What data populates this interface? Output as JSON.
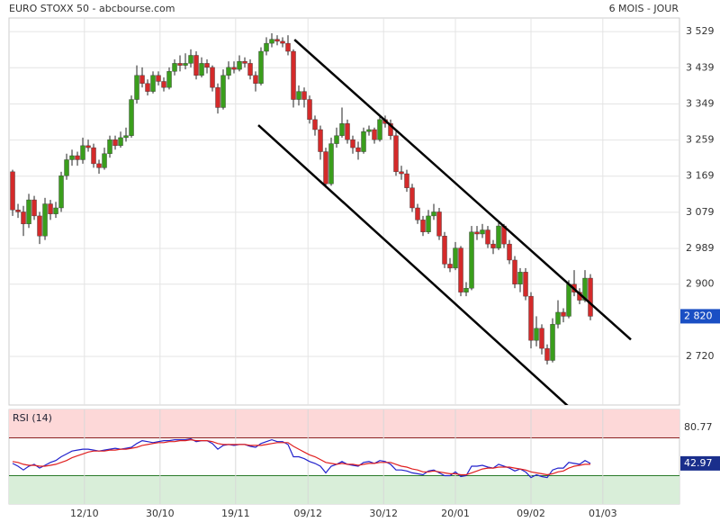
{
  "header": {
    "title": "EURO STOXX 50 - abcbourse.com",
    "period": "6 MOIS - JOUR"
  },
  "chart_data": [
    {
      "type": "candlestick",
      "grid": true,
      "up_color": "#3a9e1c",
      "down_color": "#d42a2a",
      "xlim": [
        -0.67,
        123.5
      ],
      "xticks": [
        {
          "value": 13.3,
          "label": "12/10"
        },
        {
          "value": 27.3,
          "label": "30/10"
        },
        {
          "value": 41.3,
          "label": "19/11"
        },
        {
          "value": 54.7,
          "label": "09/12"
        },
        {
          "value": 68.7,
          "label": "30/12"
        },
        {
          "value": 82,
          "label": "20/01"
        },
        {
          "value": 96,
          "label": "09/02"
        },
        {
          "value": 109.3,
          "label": "01/03"
        }
      ],
      "ylim": [
        2599,
        3563
      ],
      "yticks": [
        {
          "value": 3529,
          "label": "3 529"
        },
        {
          "value": 3439,
          "label": "3 439"
        },
        {
          "value": 3349,
          "label": "3 349"
        },
        {
          "value": 3259,
          "label": "3 259"
        },
        {
          "value": 3169,
          "label": "3 169"
        },
        {
          "value": 3079,
          "label": "3 079"
        },
        {
          "value": 2989,
          "label": "2 989"
        },
        {
          "value": 2900,
          "label": "2 900"
        },
        {
          "value": 2720,
          "label": "2 720"
        }
      ],
      "last_label": {
        "value": 2820,
        "label": "2 820",
        "color": "#1a4fc4"
      },
      "open": [
        3180,
        3085,
        3080,
        3050,
        3110,
        3070,
        3020,
        3100,
        3075,
        3090,
        3170,
        3210,
        3220,
        3210,
        3245,
        3240,
        3200,
        3190,
        3225,
        3260,
        3245,
        3265,
        3270,
        3360,
        3420,
        3400,
        3380,
        3420,
        3405,
        3390,
        3430,
        3450,
        3445,
        3450,
        3470,
        3420,
        3450,
        3440,
        3390,
        3340,
        3420,
        3440,
        3435,
        3455,
        3450,
        3420,
        3400,
        3480,
        3500,
        3510,
        3505,
        3500,
        3480,
        3360,
        3380,
        3360,
        3310,
        3285,
        3230,
        3150,
        3250,
        3270,
        3300,
        3260,
        3240,
        3230,
        3280,
        3285,
        3260,
        3310,
        3300,
        3270,
        3180,
        3175,
        3140,
        3090,
        3060,
        3030,
        3070,
        3080,
        3020,
        2950,
        2940,
        2990,
        2880,
        2890,
        3030,
        3025,
        3035,
        3000,
        2990,
        3045,
        3000,
        2960,
        2900,
        2930,
        2870,
        2760,
        2790,
        2740,
        2710,
        2800,
        2830,
        2820,
        2900,
        2880,
        2860,
        2915
      ],
      "high": [
        3185,
        3100,
        3095,
        3125,
        3120,
        3080,
        3115,
        3110,
        3105,
        3180,
        3225,
        3235,
        3230,
        3265,
        3260,
        3250,
        3210,
        3240,
        3270,
        3270,
        3280,
        3290,
        3370,
        3445,
        3440,
        3410,
        3430,
        3430,
        3415,
        3440,
        3460,
        3470,
        3475,
        3485,
        3480,
        3465,
        3460,
        3445,
        3400,
        3435,
        3455,
        3455,
        3470,
        3465,
        3460,
        3430,
        3490,
        3515,
        3525,
        3520,
        3515,
        3520,
        3485,
        3395,
        3390,
        3370,
        3320,
        3295,
        3240,
        3265,
        3290,
        3340,
        3310,
        3270,
        3255,
        3290,
        3295,
        3290,
        3320,
        3320,
        3310,
        3280,
        3195,
        3185,
        3150,
        3100,
        3070,
        3085,
        3100,
        3090,
        3030,
        2965,
        3005,
        2995,
        2905,
        3045,
        3045,
        3050,
        3045,
        3010,
        3055,
        3050,
        3010,
        2970,
        2940,
        2940,
        2880,
        2820,
        2800,
        2750,
        2815,
        2860,
        2840,
        2910,
        2935,
        2890,
        2935,
        2925
      ],
      "low": [
        3070,
        3065,
        3020,
        3040,
        3060,
        3000,
        3010,
        3060,
        3065,
        3080,
        3160,
        3195,
        3195,
        3200,
        3230,
        3190,
        3175,
        3185,
        3215,
        3235,
        3240,
        3255,
        3265,
        3350,
        3390,
        3370,
        3375,
        3395,
        3380,
        3385,
        3420,
        3430,
        3435,
        3440,
        3410,
        3415,
        3425,
        3380,
        3325,
        3335,
        3410,
        3425,
        3430,
        3440,
        3410,
        3380,
        3395,
        3470,
        3490,
        3495,
        3490,
        3470,
        3340,
        3345,
        3340,
        3300,
        3270,
        3210,
        3140,
        3145,
        3240,
        3265,
        3250,
        3225,
        3210,
        3225,
        3270,
        3250,
        3255,
        3290,
        3260,
        3170,
        3160,
        3130,
        3080,
        3050,
        3020,
        3025,
        3060,
        3010,
        2940,
        2930,
        2935,
        2870,
        2870,
        2885,
        3010,
        3015,
        2990,
        2975,
        2985,
        2990,
        2950,
        2890,
        2880,
        2860,
        2740,
        2745,
        2725,
        2700,
        2705,
        2790,
        2805,
        2815,
        2870,
        2850,
        2855,
        2810
      ],
      "close": [
        3085,
        3080,
        3050,
        3110,
        3070,
        3020,
        3100,
        3075,
        3090,
        3170,
        3210,
        3220,
        3210,
        3245,
        3240,
        3200,
        3190,
        3225,
        3260,
        3245,
        3265,
        3270,
        3360,
        3420,
        3400,
        3380,
        3420,
        3405,
        3390,
        3430,
        3450,
        3445,
        3450,
        3470,
        3420,
        3450,
        3440,
        3390,
        3340,
        3420,
        3440,
        3435,
        3455,
        3450,
        3420,
        3400,
        3480,
        3500,
        3510,
        3505,
        3500,
        3480,
        3360,
        3380,
        3360,
        3310,
        3285,
        3230,
        3150,
        3250,
        3270,
        3300,
        3260,
        3240,
        3230,
        3280,
        3285,
        3260,
        3310,
        3300,
        3270,
        3180,
        3175,
        3140,
        3090,
        3060,
        3030,
        3070,
        3080,
        3020,
        2950,
        2940,
        2990,
        2880,
        2890,
        3030,
        3025,
        3035,
        3000,
        2990,
        3045,
        3000,
        2960,
        2900,
        2930,
        2870,
        2760,
        2790,
        2740,
        2710,
        2800,
        2830,
        2820,
        2900,
        2880,
        2860,
        2915,
        2820
      ],
      "trendlines": [
        {
          "x": [
            52.2,
            114.5
          ],
          "y": [
            3509,
            2762
          ]
        },
        {
          "x": [
            45.5,
            103.2
          ],
          "y": [
            3296,
            2592
          ]
        }
      ]
    },
    {
      "type": "line",
      "title": "RSI (14)",
      "ylim": [
        0,
        100
      ],
      "yticks": [
        80.77
      ],
      "bands": [
        {
          "from": 70,
          "to": 100,
          "color": "#fdd8d8",
          "edge": "#8a2020"
        },
        {
          "from": 0,
          "to": 30,
          "color": "#d9eed9",
          "edge": "#2a7a2a"
        }
      ],
      "value_box_color": "#1a2f8c",
      "series": [
        {
          "color": "#2222cc",
          "values": [
            43,
            40,
            36,
            40,
            42,
            38,
            41,
            44,
            46,
            50,
            53,
            56,
            57,
            58,
            58,
            57,
            56,
            57,
            58,
            59,
            58,
            59,
            60,
            64,
            67,
            66,
            65,
            66,
            67,
            67,
            68,
            68,
            68,
            69,
            66,
            67,
            67,
            64,
            58,
            62,
            63,
            62,
            63,
            63,
            61,
            60,
            64,
            66,
            68,
            66,
            66,
            63,
            50,
            50,
            48,
            45,
            43,
            40,
            33,
            40,
            42,
            45,
            42,
            41,
            40,
            44,
            45,
            43,
            46,
            45,
            42,
            36,
            36,
            35,
            33,
            32,
            31,
            35,
            36,
            33,
            30,
            30,
            34,
            29,
            30,
            40,
            40,
            41,
            39,
            38,
            42,
            40,
            38,
            35,
            37,
            34,
            28,
            31,
            29,
            28,
            36,
            38,
            38,
            44,
            43,
            42,
            46,
            42.97
          ]
        },
        {
          "color": "#e02020",
          "values": [
            45,
            44,
            42,
            41,
            41,
            40,
            40,
            41,
            42,
            44,
            46,
            49,
            51,
            53,
            55,
            56,
            56,
            56,
            57,
            57,
            58,
            58,
            59,
            60,
            62,
            63,
            64,
            65,
            65,
            66,
            66,
            67,
            67,
            68,
            67,
            67,
            67,
            66,
            64,
            63,
            63,
            63,
            63,
            63,
            62,
            62,
            62,
            63,
            64,
            65,
            65,
            65,
            61,
            58,
            55,
            52,
            50,
            47,
            44,
            43,
            42,
            43,
            42,
            42,
            41,
            42,
            43,
            43,
            44,
            44,
            44,
            42,
            40,
            39,
            37,
            36,
            34,
            34,
            35,
            34,
            33,
            32,
            32,
            31,
            31,
            33,
            35,
            37,
            38,
            38,
            39,
            39,
            39,
            38,
            37,
            36,
            34,
            33,
            32,
            31,
            32,
            34,
            35,
            38,
            40,
            41,
            42,
            42
          ]
        }
      ]
    }
  ]
}
